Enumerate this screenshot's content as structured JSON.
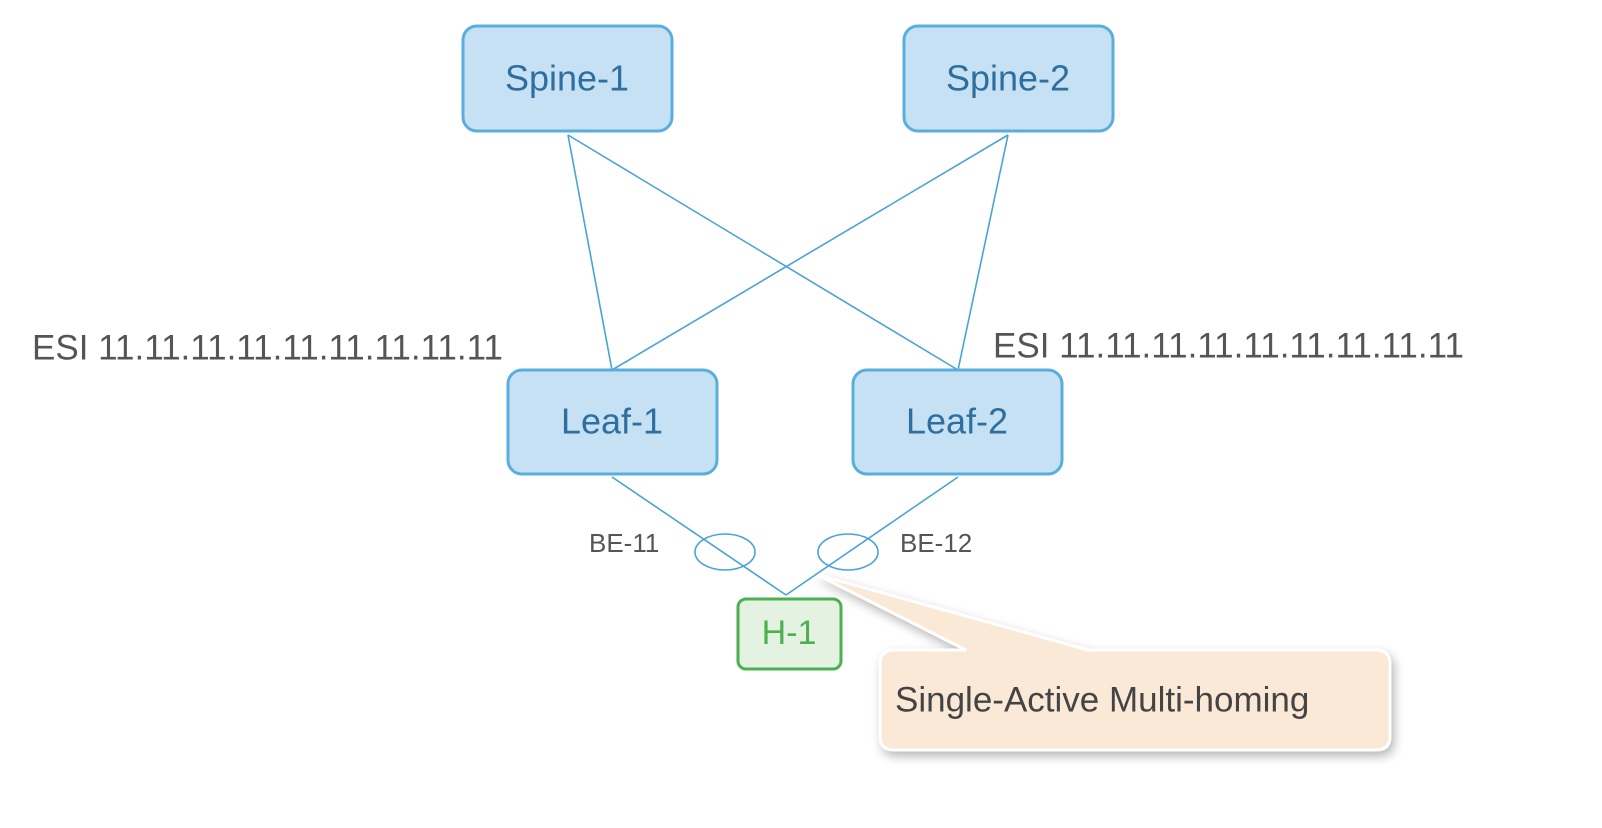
{
  "nodes": {
    "spine1": "Spine-1",
    "spine2": "Spine-2",
    "leaf1": "Leaf-1",
    "leaf2": "Leaf-2",
    "host": "H-1"
  },
  "esi": {
    "leaf1": "ESI 11.11.11.11.11.11.11.11.11",
    "leaf2": "ESI 11.11.11.11.11.11.11.11.11"
  },
  "bundles": {
    "left": "BE-11",
    "right": "BE-12"
  },
  "callout": {
    "text": "Single-Active Multi-homing"
  },
  "colors": {
    "node_fill": "#c6e1f3",
    "node_stroke": "#5aaede",
    "node_text": "#2f6f9f",
    "host_fill": "#e4f2e2",
    "host_stroke": "#4caf50",
    "link": "#4aa3d8",
    "callout_fill": "#fbe9d8",
    "label_text": "#555555"
  }
}
